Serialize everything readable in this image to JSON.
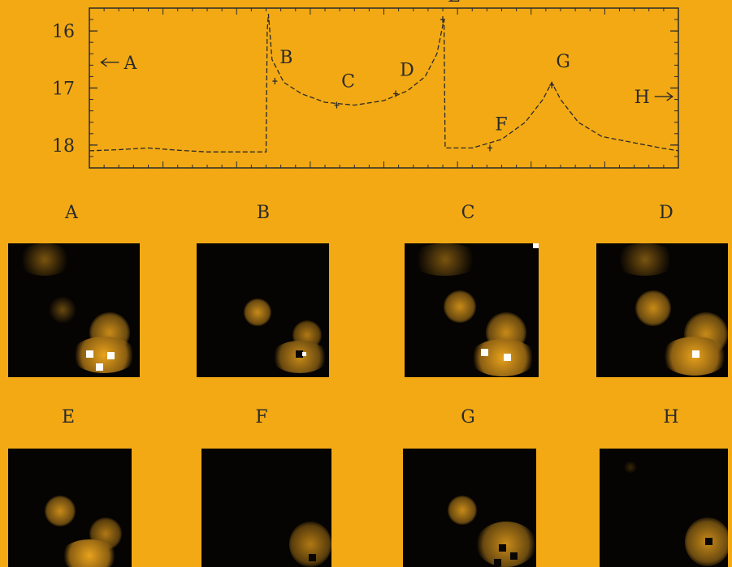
{
  "chart_data": {
    "type": "line",
    "title": "",
    "xlabel": "",
    "ylabel": "",
    "y_inverted": true,
    "ylim": [
      15.6,
      18.4
    ],
    "xlim": [
      0,
      100
    ],
    "y_ticks": [
      "16",
      "17",
      "18"
    ],
    "y_tick_values": [
      16,
      17,
      18
    ],
    "series": [
      {
        "values": [
          [
            0,
            18.1
          ],
          [
            5,
            18.08
          ],
          [
            10,
            18.05
          ],
          [
            15,
            18.09
          ],
          [
            20,
            18.12
          ],
          [
            26,
            18.12
          ],
          [
            30,
            18.12
          ],
          [
            30.2,
            16.0
          ],
          [
            30.4,
            15.7
          ],
          [
            31,
            16.5
          ],
          [
            33,
            16.9
          ],
          [
            36,
            17.1
          ],
          [
            40,
            17.25
          ],
          [
            45,
            17.3
          ],
          [
            50,
            17.22
          ],
          [
            54,
            17.05
          ],
          [
            57,
            16.8
          ],
          [
            59,
            16.4
          ],
          [
            60.2,
            15.8
          ],
          [
            60.4,
            18.05
          ],
          [
            65,
            18.05
          ],
          [
            70,
            17.9
          ],
          [
            74,
            17.6
          ],
          [
            77,
            17.2
          ],
          [
            78.5,
            16.9
          ],
          [
            80,
            17.2
          ],
          [
            83,
            17.6
          ],
          [
            87,
            17.85
          ],
          [
            92,
            17.95
          ],
          [
            97,
            18.05
          ],
          [
            100,
            18.1
          ]
        ]
      }
    ],
    "marked_points": [
      {
        "label": "A",
        "x": 2,
        "y": 16.55,
        "note": "arrow"
      },
      {
        "label": "B",
        "x": 31.5,
        "y": 16.88
      },
      {
        "label": "C",
        "x": 42,
        "y": 17.3
      },
      {
        "label": "D",
        "x": 52,
        "y": 17.1
      },
      {
        "label": "E",
        "x": 60,
        "y": 15.8
      },
      {
        "label": "F",
        "x": 68,
        "y": 18.05
      },
      {
        "label": "G",
        "x": 78.5,
        "y": 16.95
      },
      {
        "label": "H",
        "x": 99,
        "y": 17.15,
        "note": "arrow"
      }
    ]
  },
  "panels": {
    "labels": [
      "A",
      "B",
      "C",
      "D",
      "E",
      "F",
      "G",
      "H"
    ]
  },
  "colors": {
    "background": "#f2a914",
    "frame": "#2a2a2a",
    "stamp_bg": "#060402",
    "source": "#e8a21c"
  }
}
